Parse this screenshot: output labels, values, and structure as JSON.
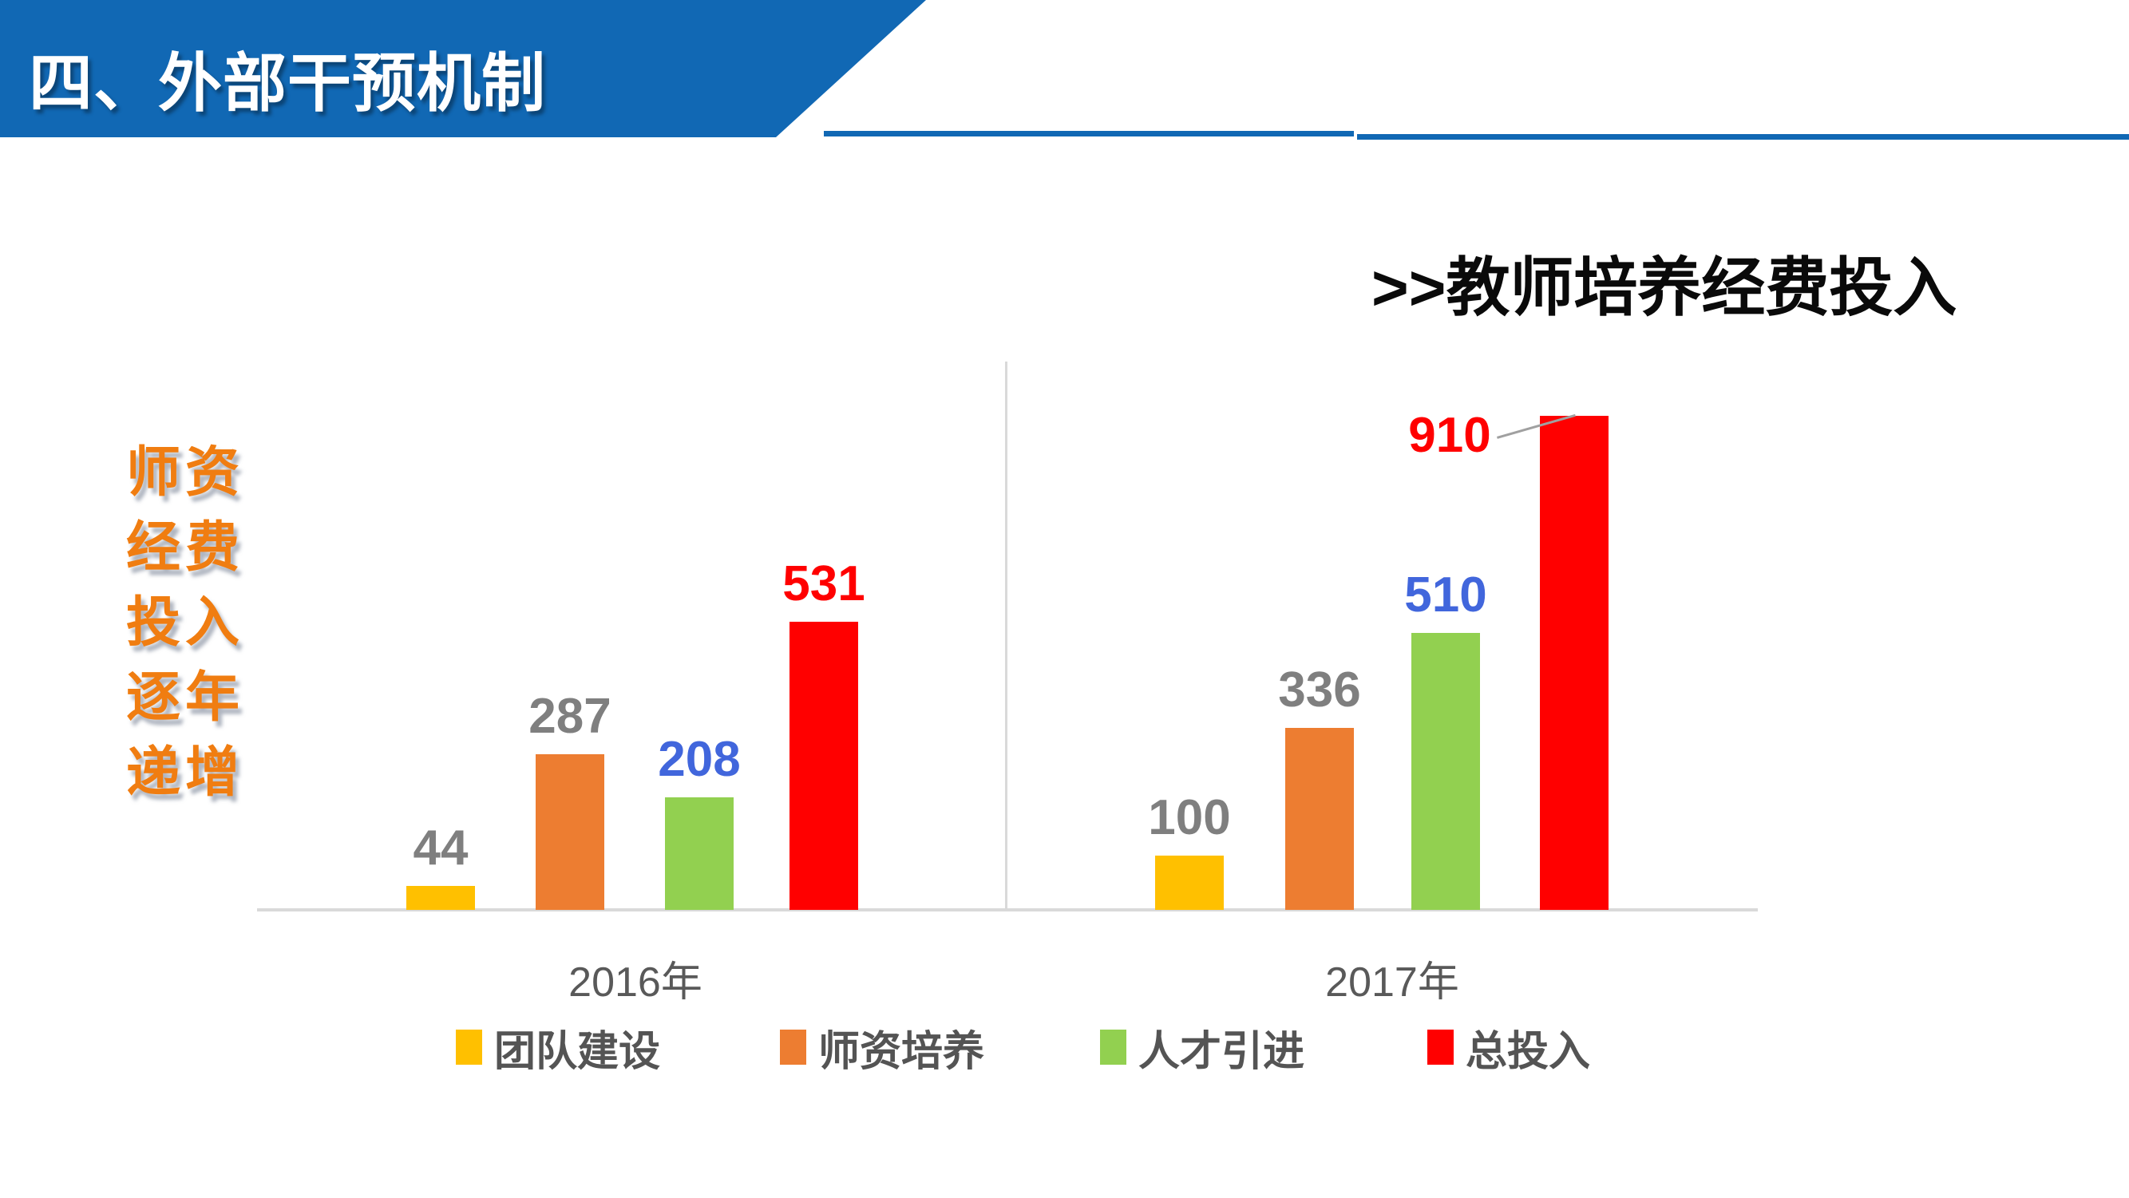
{
  "banner": {
    "title": "四、外部干预机制"
  },
  "section": {
    "title": ">>教师培养经费投入"
  },
  "side_caption": {
    "lines": [
      "师资",
      "经费",
      "投入",
      "逐年",
      "递增"
    ]
  },
  "colors": {
    "banner_blue": "#1168B4",
    "bar_yellow": "#FFC000",
    "bar_orange": "#ED7D31",
    "bar_green": "#92D050",
    "bar_red": "#FF0000",
    "value_label_gray": "#7F7F7F",
    "value_label_blue": "#4166DC",
    "value_label_red": "#FF0000",
    "axis_gray": "#D9D9D9",
    "category_text_gray": "#595959",
    "legend_text_gray": "#545454",
    "side_caption_orange": "#F07D11"
  },
  "chart_data": {
    "type": "bar",
    "title": "教师培养经费投入",
    "categories": [
      "2016年",
      "2017年"
    ],
    "series": [
      {
        "name": "团队建设",
        "color": "#FFC000",
        "label_color": "#7F7F7F",
        "values": [
          44,
          100
        ]
      },
      {
        "name": "师资培养",
        "color": "#ED7D31",
        "label_color": "#7F7F7F",
        "values": [
          287,
          336
        ]
      },
      {
        "name": "人才引进",
        "color": "#92D050",
        "label_color": "#4166DC",
        "values": [
          208,
          510
        ]
      },
      {
        "name": "总投入",
        "color": "#FF0000",
        "label_color": "#FF0000",
        "values": [
          531,
          910
        ]
      }
    ],
    "ylim": [
      0,
      1000
    ],
    "grid": false,
    "axis_line": "bottom-only",
    "legend_position": "bottom",
    "annotations": [
      {
        "series": "总投入",
        "category": "2017年",
        "value": 910,
        "label": "910",
        "placement": "left-of-bar",
        "leader_line": true
      }
    ]
  }
}
